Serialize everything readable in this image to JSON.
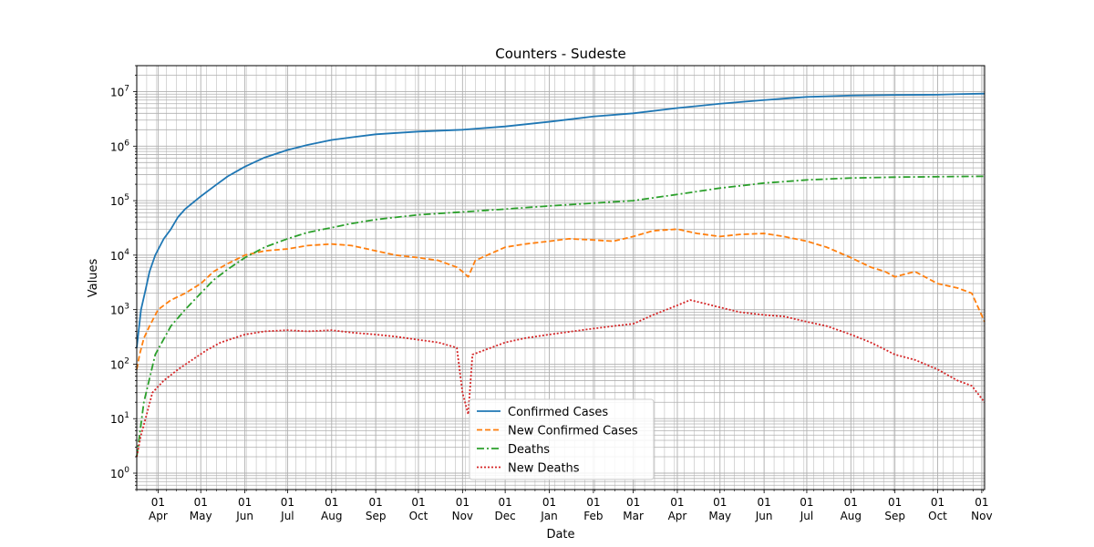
{
  "chart_data": {
    "type": "line",
    "title": "Counters - Sudeste",
    "xlabel": "Date",
    "ylabel": "Values",
    "yscale": "log",
    "ylim": [
      0.5,
      30000000
    ],
    "xlim": [
      "2020-03-17",
      "2021-11-03"
    ],
    "grid": "major and minor",
    "legend": "lower center",
    "x_ticks": [
      {
        "date": "2020-04-01",
        "day": "01",
        "month": "Apr"
      },
      {
        "date": "2020-05-01",
        "day": "01",
        "month": "May"
      },
      {
        "date": "2020-06-01",
        "day": "01",
        "month": "Jun"
      },
      {
        "date": "2020-07-01",
        "day": "01",
        "month": "Jul"
      },
      {
        "date": "2020-08-01",
        "day": "01",
        "month": "Aug"
      },
      {
        "date": "2020-09-01",
        "day": "01",
        "month": "Sep"
      },
      {
        "date": "2020-10-01",
        "day": "01",
        "month": "Oct"
      },
      {
        "date": "2020-11-01",
        "day": "01",
        "month": "Nov"
      },
      {
        "date": "2020-12-01",
        "day": "01",
        "month": "Dec"
      },
      {
        "date": "2021-01-01",
        "day": "01",
        "month": "Jan"
      },
      {
        "date": "2021-02-01",
        "day": "01",
        "month": "Feb"
      },
      {
        "date": "2021-03-01",
        "day": "01",
        "month": "Mar"
      },
      {
        "date": "2021-04-01",
        "day": "01",
        "month": "Apr"
      },
      {
        "date": "2021-05-01",
        "day": "01",
        "month": "May"
      },
      {
        "date": "2021-06-01",
        "day": "01",
        "month": "Jun"
      },
      {
        "date": "2021-07-01",
        "day": "01",
        "month": "Jul"
      },
      {
        "date": "2021-08-01",
        "day": "01",
        "month": "Aug"
      },
      {
        "date": "2021-09-01",
        "day": "01",
        "month": "Sep"
      },
      {
        "date": "2021-10-01",
        "day": "01",
        "month": "Oct"
      },
      {
        "date": "2021-11-01",
        "day": "01",
        "month": "Nov"
      }
    ],
    "y_ticks": [
      {
        "value": 1,
        "label": "10^0"
      },
      {
        "value": 10,
        "label": "10^1"
      },
      {
        "value": 100,
        "label": "10^2"
      },
      {
        "value": 1000,
        "label": "10^3"
      },
      {
        "value": 10000,
        "label": "10^4"
      },
      {
        "value": 100000,
        "label": "10^5"
      },
      {
        "value": 1000000,
        "label": "10^6"
      },
      {
        "value": 10000000,
        "label": "10^7"
      }
    ],
    "series": [
      {
        "name": "Confirmed Cases",
        "color": "#1f77b4",
        "dash": "solid",
        "points": [
          [
            "2020-03-17",
            200
          ],
          [
            "2020-03-20",
            1000
          ],
          [
            "2020-03-23",
            2200
          ],
          [
            "2020-03-26",
            5000
          ],
          [
            "2020-03-30",
            10000
          ],
          [
            "2020-04-05",
            20000
          ],
          [
            "2020-04-10",
            30000
          ],
          [
            "2020-04-15",
            50000
          ],
          [
            "2020-04-20",
            70000
          ],
          [
            "2020-05-01",
            120000
          ],
          [
            "2020-05-10",
            180000
          ],
          [
            "2020-05-20",
            280000
          ],
          [
            "2020-06-01",
            420000
          ],
          [
            "2020-06-15",
            620000
          ],
          [
            "2020-07-01",
            850000
          ],
          [
            "2020-07-15",
            1050000
          ],
          [
            "2020-08-01",
            1300000
          ],
          [
            "2020-08-15",
            1450000
          ],
          [
            "2020-09-01",
            1650000
          ],
          [
            "2020-10-01",
            1850000
          ],
          [
            "2020-11-01",
            2000000
          ],
          [
            "2020-12-01",
            2300000
          ],
          [
            "2021-01-01",
            2800000
          ],
          [
            "2021-02-01",
            3500000
          ],
          [
            "2021-03-01",
            4000000
          ],
          [
            "2021-04-01",
            5000000
          ],
          [
            "2021-05-01",
            6000000
          ],
          [
            "2021-06-01",
            7000000
          ],
          [
            "2021-07-01",
            8000000
          ],
          [
            "2021-07-20",
            8300000
          ],
          [
            "2021-08-01",
            8500000
          ],
          [
            "2021-09-01",
            8700000
          ],
          [
            "2021-10-01",
            8800000
          ],
          [
            "2021-10-15",
            9000000
          ],
          [
            "2021-11-03",
            9200000
          ]
        ]
      },
      {
        "name": "New Confirmed Cases",
        "color": "#ff7f0e",
        "dash": "dashed",
        "points": [
          [
            "2020-03-17",
            80
          ],
          [
            "2020-03-19",
            150
          ],
          [
            "2020-03-22",
            300
          ],
          [
            "2020-03-26",
            500
          ],
          [
            "2020-04-01",
            1000
          ],
          [
            "2020-04-10",
            1500
          ],
          [
            "2020-04-20",
            2000
          ],
          [
            "2020-05-01",
            3000
          ],
          [
            "2020-05-10",
            5000
          ],
          [
            "2020-05-20",
            7000
          ],
          [
            "2020-06-01",
            10000
          ],
          [
            "2020-06-15",
            12000
          ],
          [
            "2020-07-01",
            13000
          ],
          [
            "2020-07-15",
            15000
          ],
          [
            "2020-08-01",
            16000
          ],
          [
            "2020-08-15",
            15000
          ],
          [
            "2020-09-01",
            12000
          ],
          [
            "2020-09-15",
            10000
          ],
          [
            "2020-10-01",
            9000
          ],
          [
            "2020-10-15",
            8000
          ],
          [
            "2020-10-28",
            6000
          ],
          [
            "2020-11-01",
            5000
          ],
          [
            "2020-11-05",
            4000
          ],
          [
            "2020-11-10",
            8000
          ],
          [
            "2020-12-01",
            14000
          ],
          [
            "2020-12-15",
            16000
          ],
          [
            "2021-01-01",
            18000
          ],
          [
            "2021-01-15",
            20000
          ],
          [
            "2021-02-01",
            19000
          ],
          [
            "2021-02-15",
            18000
          ],
          [
            "2021-03-01",
            22000
          ],
          [
            "2021-03-15",
            28000
          ],
          [
            "2021-04-01",
            30000
          ],
          [
            "2021-04-15",
            25000
          ],
          [
            "2021-05-01",
            22000
          ],
          [
            "2021-05-15",
            24000
          ],
          [
            "2021-06-01",
            25000
          ],
          [
            "2021-06-15",
            22000
          ],
          [
            "2021-07-01",
            18000
          ],
          [
            "2021-07-15",
            14000
          ],
          [
            "2021-08-01",
            9000
          ],
          [
            "2021-08-15",
            6000
          ],
          [
            "2021-08-25",
            5000
          ],
          [
            "2021-09-01",
            4000
          ],
          [
            "2021-09-15",
            5000
          ],
          [
            "2021-10-01",
            3000
          ],
          [
            "2021-10-15",
            2500
          ],
          [
            "2021-10-25",
            2000
          ],
          [
            "2021-11-03",
            600
          ]
        ]
      },
      {
        "name": "Deaths",
        "color": "#2ca02c",
        "dash": "dashdot",
        "points": [
          [
            "2020-03-17",
            2
          ],
          [
            "2020-03-22",
            20
          ],
          [
            "2020-03-30",
            150
          ],
          [
            "2020-04-10",
            500
          ],
          [
            "2020-04-20",
            1000
          ],
          [
            "2020-05-01",
            2000
          ],
          [
            "2020-05-10",
            3500
          ],
          [
            "2020-05-20",
            5500
          ],
          [
            "2020-06-01",
            9000
          ],
          [
            "2020-06-15",
            14000
          ],
          [
            "2020-07-01",
            20000
          ],
          [
            "2020-07-15",
            26000
          ],
          [
            "2020-08-01",
            32000
          ],
          [
            "2020-08-15",
            38000
          ],
          [
            "2020-09-01",
            45000
          ],
          [
            "2020-10-01",
            55000
          ],
          [
            "2020-11-01",
            62000
          ],
          [
            "2020-12-01",
            70000
          ],
          [
            "2021-01-01",
            80000
          ],
          [
            "2021-02-01",
            90000
          ],
          [
            "2021-03-01",
            100000
          ],
          [
            "2021-04-01",
            130000
          ],
          [
            "2021-05-01",
            170000
          ],
          [
            "2021-06-01",
            210000
          ],
          [
            "2021-07-01",
            240000
          ],
          [
            "2021-08-01",
            260000
          ],
          [
            "2021-09-01",
            270000
          ],
          [
            "2021-10-01",
            275000
          ],
          [
            "2021-11-03",
            280000
          ]
        ]
      },
      {
        "name": "New Deaths",
        "color": "#d62728",
        "dash": "dotted",
        "points": [
          [
            "2020-03-17",
            2
          ],
          [
            "2020-03-20",
            5
          ],
          [
            "2020-03-24",
            12
          ],
          [
            "2020-03-28",
            30
          ],
          [
            "2020-04-05",
            50
          ],
          [
            "2020-04-15",
            80
          ],
          [
            "2020-04-25",
            120
          ],
          [
            "2020-05-05",
            180
          ],
          [
            "2020-05-15",
            250
          ],
          [
            "2020-06-01",
            350
          ],
          [
            "2020-06-15",
            400
          ],
          [
            "2020-07-01",
            420
          ],
          [
            "2020-07-15",
            400
          ],
          [
            "2020-08-01",
            420
          ],
          [
            "2020-08-15",
            380
          ],
          [
            "2020-09-01",
            350
          ],
          [
            "2020-09-15",
            320
          ],
          [
            "2020-10-01",
            280
          ],
          [
            "2020-10-15",
            250
          ],
          [
            "2020-10-28",
            200
          ],
          [
            "2020-11-01",
            30
          ],
          [
            "2020-11-05",
            12
          ],
          [
            "2020-11-08",
            150
          ],
          [
            "2020-12-01",
            250
          ],
          [
            "2020-12-15",
            300
          ],
          [
            "2021-01-01",
            350
          ],
          [
            "2021-02-01",
            450
          ],
          [
            "2021-02-15",
            500
          ],
          [
            "2021-03-01",
            550
          ],
          [
            "2021-03-15",
            800
          ],
          [
            "2021-04-01",
            1200
          ],
          [
            "2021-04-10",
            1500
          ],
          [
            "2021-04-20",
            1300
          ],
          [
            "2021-05-01",
            1100
          ],
          [
            "2021-05-15",
            900
          ],
          [
            "2021-06-01",
            800
          ],
          [
            "2021-06-15",
            750
          ],
          [
            "2021-07-01",
            600
          ],
          [
            "2021-07-15",
            500
          ],
          [
            "2021-08-01",
            350
          ],
          [
            "2021-08-15",
            250
          ],
          [
            "2021-09-01",
            150
          ],
          [
            "2021-09-15",
            120
          ],
          [
            "2021-10-01",
            80
          ],
          [
            "2021-10-15",
            50
          ],
          [
            "2021-10-25",
            40
          ],
          [
            "2021-11-03",
            20
          ]
        ]
      }
    ]
  }
}
